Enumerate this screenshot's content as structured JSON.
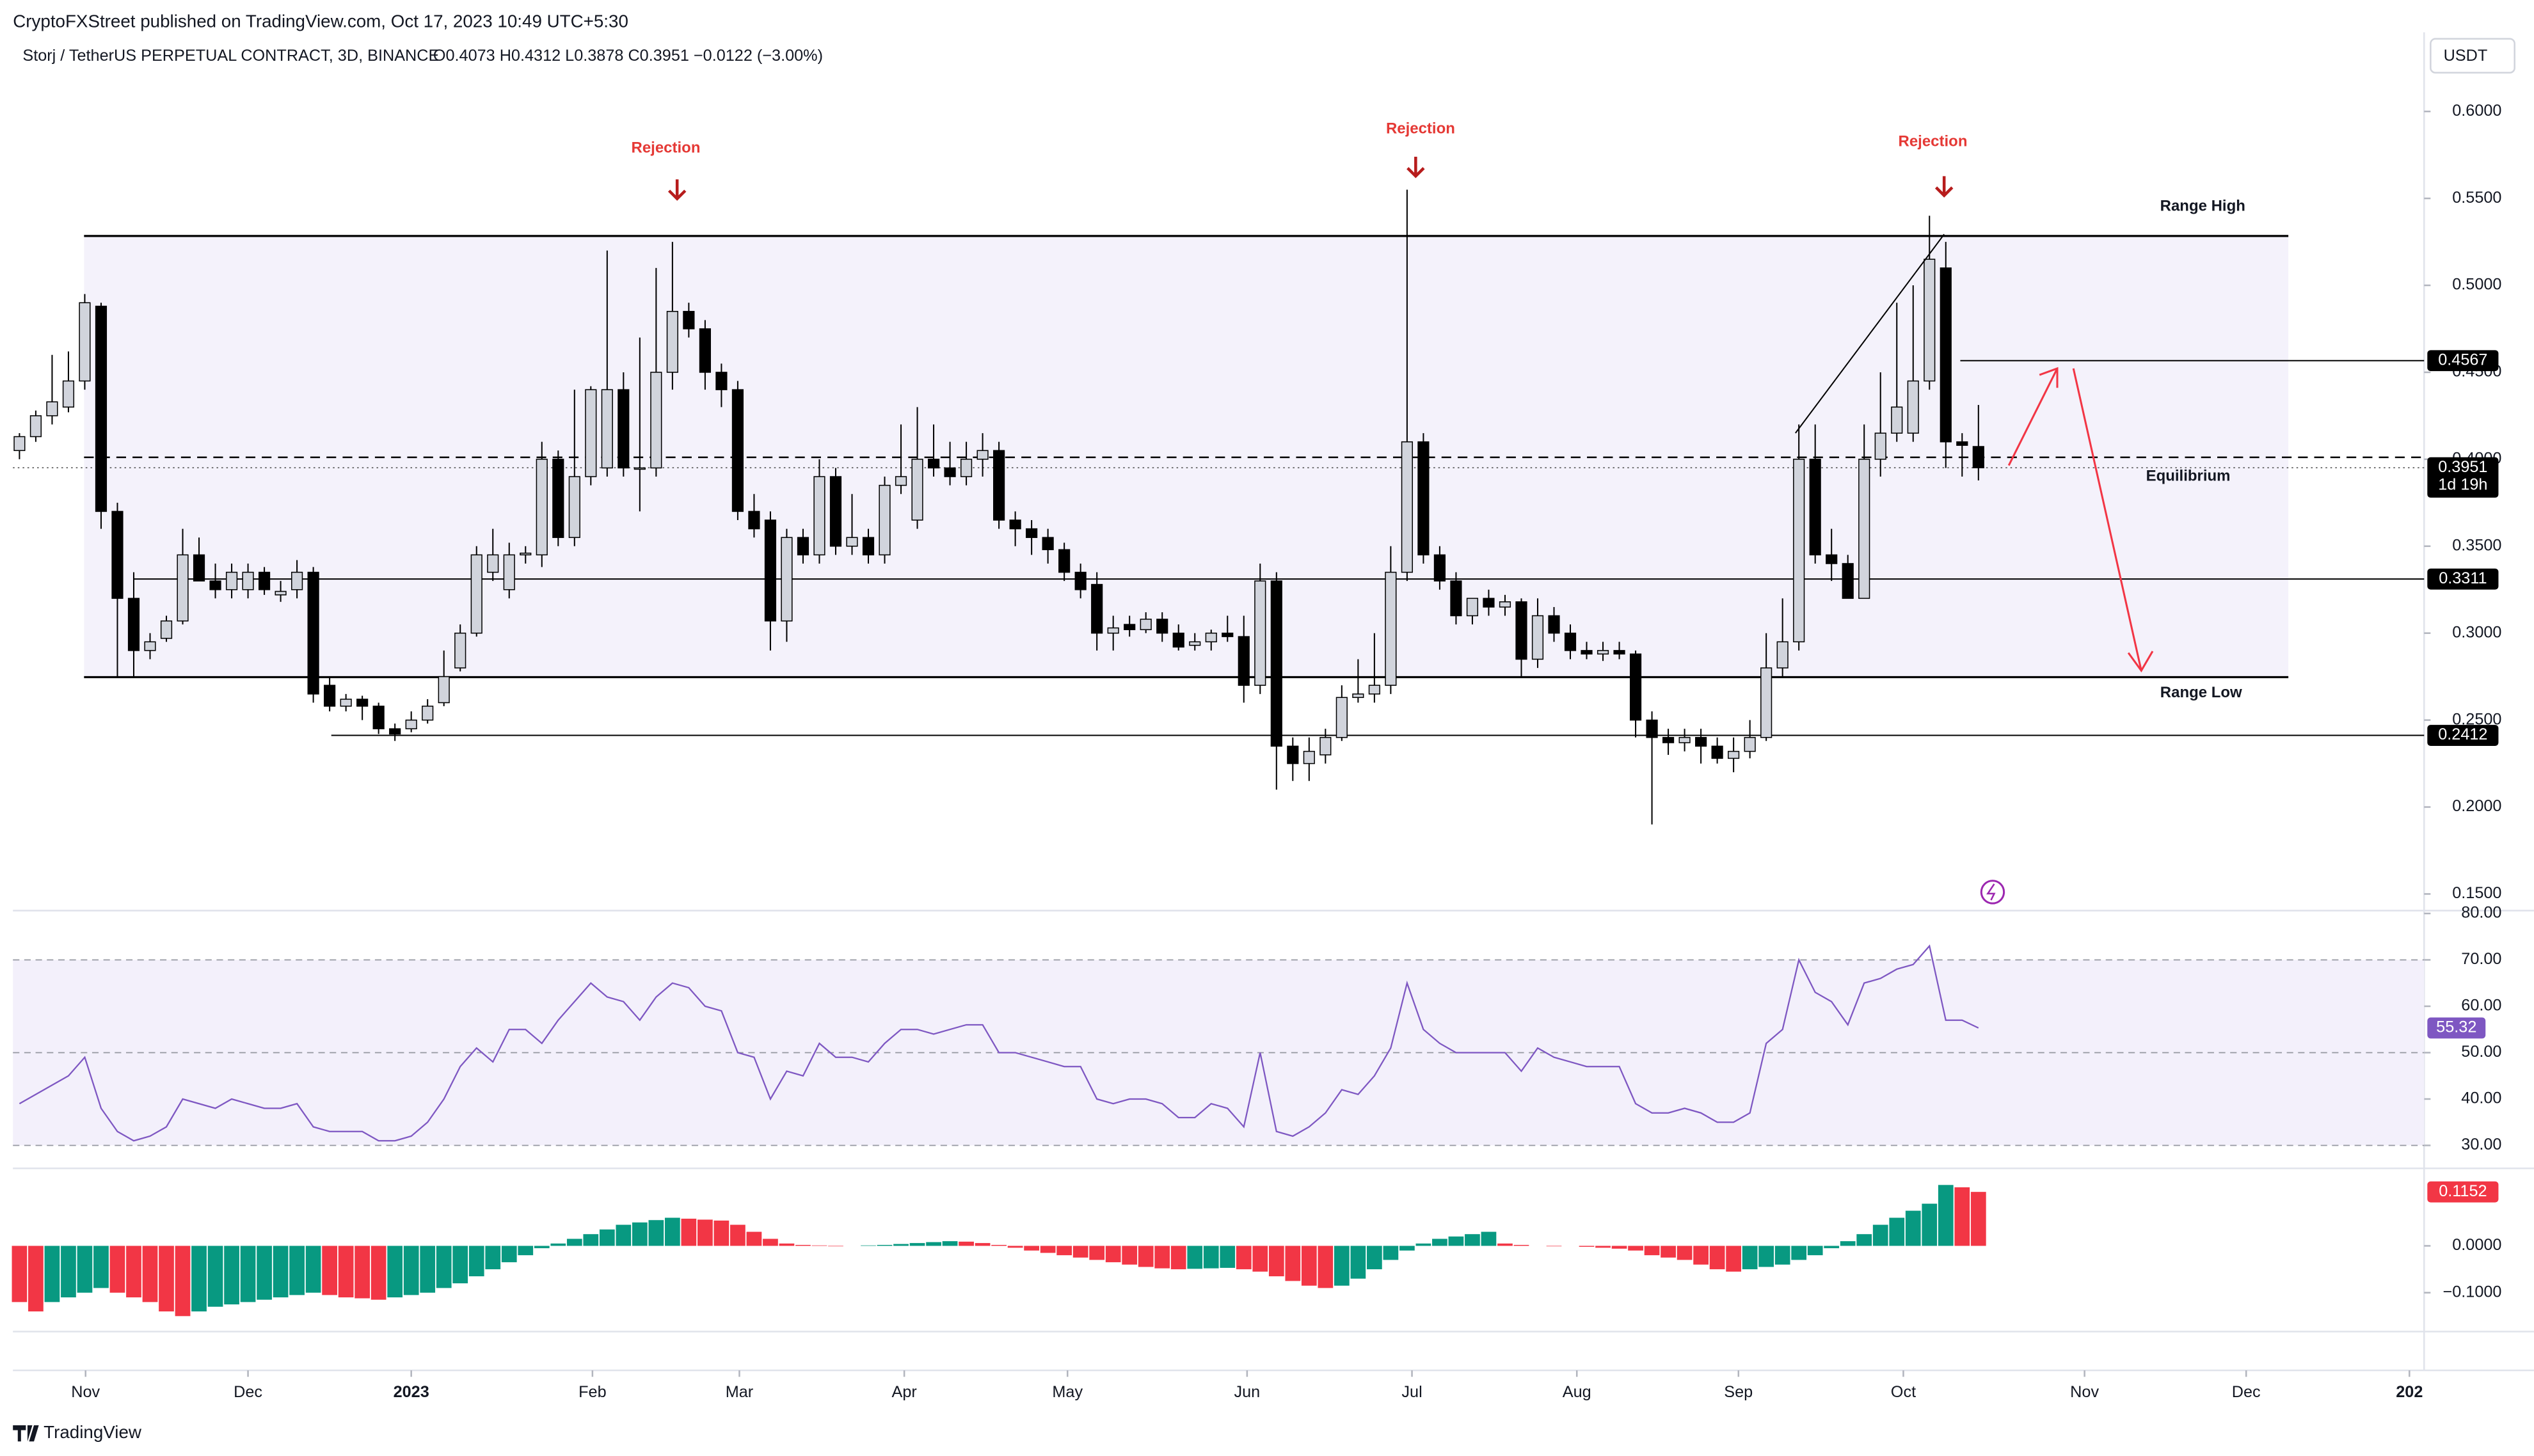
{
  "header": {
    "publisher": "CryptoFXStreet published on TradingView.com, Oct 17, 2023 10:49 UTC+5:30",
    "symbol": "Storj / TetherUS PERPETUAL CONTRACT, 3D, BINANCE",
    "quote": "O0.4073  H0.4312  L0.3878  C0.3951  −0.0122 (−3.00%)",
    "currency": "USDT",
    "countdown": "1d 19h"
  },
  "annotations": {
    "rejection": [
      "Rejection",
      "Rejection",
      "Rejection"
    ],
    "range_high": "Range High",
    "range_low": "Range Low",
    "equilibrium": "Equilibrium"
  },
  "footer": {
    "brand": "TradingView"
  },
  "chart_data": [
    {
      "type": "candlestick",
      "up_color": "#d1d4dc",
      "down_color": "#000000",
      "open": [
        0.405,
        0.413,
        0.425,
        0.43,
        0.445,
        0.488,
        0.37,
        0.32,
        0.29,
        0.297,
        0.307,
        0.345,
        0.33,
        0.325,
        0.325,
        0.335,
        0.322,
        0.325,
        0.335,
        0.27,
        0.258,
        0.262,
        0.258,
        0.245,
        0.245,
        0.25,
        0.26,
        0.28,
        0.3,
        0.335,
        0.325,
        0.345,
        0.345,
        0.4,
        0.355,
        0.39,
        0.395,
        0.44,
        0.395,
        0.395,
        0.45,
        0.485,
        0.475,
        0.45,
        0.44,
        0.37,
        0.365,
        0.307,
        0.355,
        0.345,
        0.39,
        0.35,
        0.355,
        0.345,
        0.385,
        0.365,
        0.4,
        0.395,
        0.39,
        0.4,
        0.405,
        0.365,
        0.36,
        0.355,
        0.348,
        0.335,
        0.328,
        0.3,
        0.305,
        0.302,
        0.308,
        0.3,
        0.293,
        0.295,
        0.3,
        0.298,
        0.27,
        0.33,
        0.235,
        0.225,
        0.23,
        0.24,
        0.263,
        0.265,
        0.27,
        0.335,
        0.41,
        0.345,
        0.33,
        0.31,
        0.32,
        0.315,
        0.318,
        0.285,
        0.31,
        0.3,
        0.29,
        0.288,
        0.29,
        0.288,
        0.25,
        0.24,
        0.237,
        0.24,
        0.235,
        0.228,
        0.232,
        0.24,
        0.28,
        0.295,
        0.4,
        0.345,
        0.34,
        0.32,
        0.4,
        0.415,
        0.415,
        0.445,
        0.51,
        0.41,
        0.4073
      ],
      "high": [
        0.415,
        0.428,
        0.46,
        0.462,
        0.495,
        0.49,
        0.375,
        0.335,
        0.3,
        0.31,
        0.36,
        0.355,
        0.34,
        0.34,
        0.34,
        0.338,
        0.33,
        0.342,
        0.338,
        0.275,
        0.265,
        0.264,
        0.26,
        0.248,
        0.255,
        0.262,
        0.29,
        0.305,
        0.35,
        0.36,
        0.352,
        0.35,
        0.41,
        0.405,
        0.44,
        0.442,
        0.52,
        0.45,
        0.47,
        0.51,
        0.525,
        0.49,
        0.48,
        0.455,
        0.445,
        0.38,
        0.37,
        0.36,
        0.36,
        0.4,
        0.395,
        0.38,
        0.36,
        0.39,
        0.42,
        0.43,
        0.42,
        0.41,
        0.41,
        0.415,
        0.41,
        0.37,
        0.365,
        0.36,
        0.352,
        0.34,
        0.335,
        0.31,
        0.31,
        0.312,
        0.312,
        0.305,
        0.3,
        0.302,
        0.31,
        0.31,
        0.34,
        0.335,
        0.24,
        0.24,
        0.245,
        0.27,
        0.285,
        0.3,
        0.35,
        0.555,
        0.415,
        0.35,
        0.335,
        0.32,
        0.325,
        0.322,
        0.32,
        0.32,
        0.315,
        0.305,
        0.295,
        0.295,
        0.295,
        0.29,
        0.255,
        0.245,
        0.245,
        0.245,
        0.24,
        0.24,
        0.25,
        0.3,
        0.32,
        0.42,
        0.42,
        0.36,
        0.345,
        0.42,
        0.45,
        0.49,
        0.5,
        0.54,
        0.525,
        0.415,
        0.4312
      ],
      "low": [
        0.4,
        0.41,
        0.42,
        0.427,
        0.44,
        0.36,
        0.275,
        0.275,
        0.285,
        0.295,
        0.305,
        0.33,
        0.32,
        0.32,
        0.32,
        0.322,
        0.318,
        0.32,
        0.26,
        0.255,
        0.255,
        0.25,
        0.242,
        0.238,
        0.243,
        0.248,
        0.258,
        0.278,
        0.298,
        0.33,
        0.32,
        0.34,
        0.338,
        0.35,
        0.35,
        0.385,
        0.39,
        0.39,
        0.37,
        0.39,
        0.44,
        0.47,
        0.44,
        0.43,
        0.365,
        0.355,
        0.29,
        0.295,
        0.34,
        0.34,
        0.345,
        0.345,
        0.34,
        0.34,
        0.38,
        0.36,
        0.39,
        0.385,
        0.385,
        0.39,
        0.36,
        0.35,
        0.345,
        0.34,
        0.33,
        0.32,
        0.29,
        0.29,
        0.298,
        0.3,
        0.295,
        0.29,
        0.29,
        0.29,
        0.295,
        0.26,
        0.265,
        0.21,
        0.215,
        0.215,
        0.225,
        0.238,
        0.26,
        0.26,
        0.265,
        0.33,
        0.34,
        0.325,
        0.305,
        0.305,
        0.31,
        0.31,
        0.275,
        0.28,
        0.295,
        0.285,
        0.285,
        0.284,
        0.285,
        0.24,
        0.19,
        0.23,
        0.232,
        0.225,
        0.225,
        0.22,
        0.228,
        0.238,
        0.275,
        0.29,
        0.34,
        0.33,
        0.32,
        0.32,
        0.39,
        0.41,
        0.41,
        0.44,
        0.395,
        0.39,
        0.3878
      ],
      "close": [
        0.413,
        0.425,
        0.433,
        0.445,
        0.49,
        0.37,
        0.32,
        0.29,
        0.295,
        0.307,
        0.345,
        0.33,
        0.325,
        0.335,
        0.335,
        0.325,
        0.324,
        0.335,
        0.265,
        0.258,
        0.262,
        0.258,
        0.245,
        0.242,
        0.25,
        0.258,
        0.275,
        0.3,
        0.345,
        0.345,
        0.345,
        0.346,
        0.4,
        0.355,
        0.39,
        0.44,
        0.44,
        0.395,
        0.395,
        0.45,
        0.485,
        0.475,
        0.45,
        0.44,
        0.37,
        0.36,
        0.307,
        0.355,
        0.345,
        0.39,
        0.35,
        0.355,
        0.345,
        0.385,
        0.39,
        0.4,
        0.395,
        0.39,
        0.4,
        0.405,
        0.365,
        0.36,
        0.355,
        0.348,
        0.335,
        0.325,
        0.3,
        0.303,
        0.302,
        0.308,
        0.3,
        0.292,
        0.295,
        0.3,
        0.298,
        0.27,
        0.33,
        0.235,
        0.225,
        0.232,
        0.24,
        0.263,
        0.265,
        0.27,
        0.335,
        0.41,
        0.345,
        0.33,
        0.31,
        0.32,
        0.315,
        0.318,
        0.285,
        0.31,
        0.3,
        0.29,
        0.288,
        0.29,
        0.288,
        0.25,
        0.24,
        0.237,
        0.24,
        0.235,
        0.228,
        0.232,
        0.24,
        0.28,
        0.295,
        0.4,
        0.345,
        0.34,
        0.32,
        0.4,
        0.415,
        0.43,
        0.445,
        0.515,
        0.41,
        0.408,
        0.3951
      ],
      "ylim": [
        0.1409,
        0.6455
      ],
      "yticks": [
        {
          "value": 0.6,
          "label": "0.6000"
        },
        {
          "value": 0.55,
          "label": "0.5500"
        },
        {
          "value": 0.5,
          "label": "0.5000"
        },
        {
          "value": 0.45,
          "label": "0.4500"
        },
        {
          "value": 0.4,
          "label": "0.4000"
        },
        {
          "value": 0.35,
          "label": "0.3500"
        },
        {
          "value": 0.3,
          "label": "0.3000"
        },
        {
          "value": 0.25,
          "label": "0.2500"
        },
        {
          "value": 0.2,
          "label": "0.2000"
        },
        {
          "value": 0.15,
          "label": "0.1500"
        }
      ],
      "xlim": [
        -0.4,
        147.3
      ],
      "xticks": [
        {
          "value": 4.05,
          "label": "Nov"
        },
        {
          "value": 14.0,
          "label": "Dec"
        },
        {
          "value": 24.0,
          "label": "2023"
        },
        {
          "value": 35.1,
          "label": "Feb"
        },
        {
          "value": 44.1,
          "label": "Mar"
        },
        {
          "value": 54.2,
          "label": "Apr"
        },
        {
          "value": 64.2,
          "label": "May"
        },
        {
          "value": 75.2,
          "label": "Jun"
        },
        {
          "value": 85.3,
          "label": "Jul"
        },
        {
          "value": 95.4,
          "label": "Aug"
        },
        {
          "value": 105.3,
          "label": "Sep"
        },
        {
          "value": 115.4,
          "label": "Oct"
        },
        {
          "value": 126.5,
          "label": "Nov"
        },
        {
          "value": 136.4,
          "label": "Dec"
        },
        {
          "value": 146.4,
          "label": "202"
        }
      ],
      "levels": [
        0.4567,
        0.3311,
        0.2412
      ],
      "range": {
        "high": 0.5284,
        "low": 0.2747,
        "equilibrium": 0.4011
      }
    },
    {
      "type": "line",
      "color": "#7e57c2",
      "values": [
        39,
        41,
        43,
        45,
        49,
        38,
        33,
        31,
        32,
        34,
        40,
        39,
        38,
        40,
        39,
        38,
        38,
        39,
        34,
        33,
        33,
        33,
        31,
        31,
        32,
        35,
        40,
        47,
        51,
        48,
        55,
        55,
        52,
        57,
        61,
        65,
        62,
        61,
        57,
        62,
        65,
        64,
        60,
        59,
        50,
        49,
        40,
        46,
        45,
        52,
        49,
        49,
        48,
        52,
        55,
        55,
        54,
        55,
        56,
        56,
        50,
        50,
        49,
        48,
        47,
        47,
        40,
        39,
        40,
        40,
        39,
        36,
        36,
        39,
        38,
        34,
        50,
        33,
        32,
        34,
        37,
        42,
        41,
        45,
        51,
        65,
        55,
        52,
        50,
        50,
        50,
        50,
        46,
        51,
        49,
        48,
        47,
        47,
        47,
        39,
        37,
        37,
        38,
        37,
        35,
        35,
        37,
        52,
        55,
        70,
        63,
        61,
        56,
        65,
        66,
        68,
        69,
        73,
        57,
        57,
        55.32
      ],
      "ylim": [
        25.4,
        80.1
      ],
      "yticks": [
        {
          "value": 80,
          "label": "80.00"
        },
        {
          "value": 70,
          "label": "70.00"
        },
        {
          "value": 60,
          "label": "60.00"
        },
        {
          "value": 50,
          "label": "50.00"
        },
        {
          "value": 40,
          "label": "40.00"
        },
        {
          "value": 30,
          "label": "30.00"
        }
      ],
      "band": [
        30,
        70
      ],
      "levels": [
        70,
        50,
        30
      ]
    },
    {
      "type": "bar",
      "up_color": "#089981",
      "down_color": "#f23645",
      "values": [
        -0.12,
        -0.14,
        -0.12,
        -0.11,
        -0.1,
        -0.09,
        -0.1,
        -0.11,
        -0.12,
        -0.14,
        -0.15,
        -0.14,
        -0.13,
        -0.125,
        -0.12,
        -0.115,
        -0.11,
        -0.105,
        -0.1,
        -0.105,
        -0.11,
        -0.112,
        -0.115,
        -0.11,
        -0.105,
        -0.1,
        -0.09,
        -0.08,
        -0.065,
        -0.05,
        -0.035,
        -0.02,
        -0.005,
        0.005,
        0.015,
        0.025,
        0.035,
        0.045,
        0.05,
        0.055,
        0.06,
        0.058,
        0.056,
        0.054,
        0.045,
        0.03,
        0.015,
        0.005,
        0.002,
        0.001,
        -0.001,
        0,
        0.001,
        0.002,
        0.004,
        0.006,
        0.008,
        0.01,
        0.009,
        0.006,
        0.002,
        -0.004,
        -0.01,
        -0.015,
        -0.02,
        -0.025,
        -0.03,
        -0.035,
        -0.04,
        -0.045,
        -0.048,
        -0.05,
        -0.049,
        -0.048,
        -0.047,
        -0.05,
        -0.055,
        -0.065,
        -0.075,
        -0.085,
        -0.09,
        -0.085,
        -0.07,
        -0.05,
        -0.03,
        -0.01,
        0.005,
        0.015,
        0.02,
        0.025,
        0.03,
        0.005,
        0.002,
        0,
        -0.001,
        0,
        -0.002,
        -0.004,
        -0.006,
        -0.01,
        -0.02,
        -0.025,
        -0.03,
        -0.04,
        -0.05,
        -0.055,
        -0.05,
        -0.045,
        -0.04,
        -0.03,
        -0.02,
        -0.005,
        0.01,
        0.025,
        0.045,
        0.06,
        0.075,
        0.09,
        0.13,
        0.125,
        0.1152
      ],
      "ylim": [
        -0.183,
        0.162
      ],
      "yticks": [
        {
          "value": 0,
          "label": "0.0000"
        },
        {
          "value": -0.1,
          "label": "−0.1000"
        }
      ]
    }
  ]
}
